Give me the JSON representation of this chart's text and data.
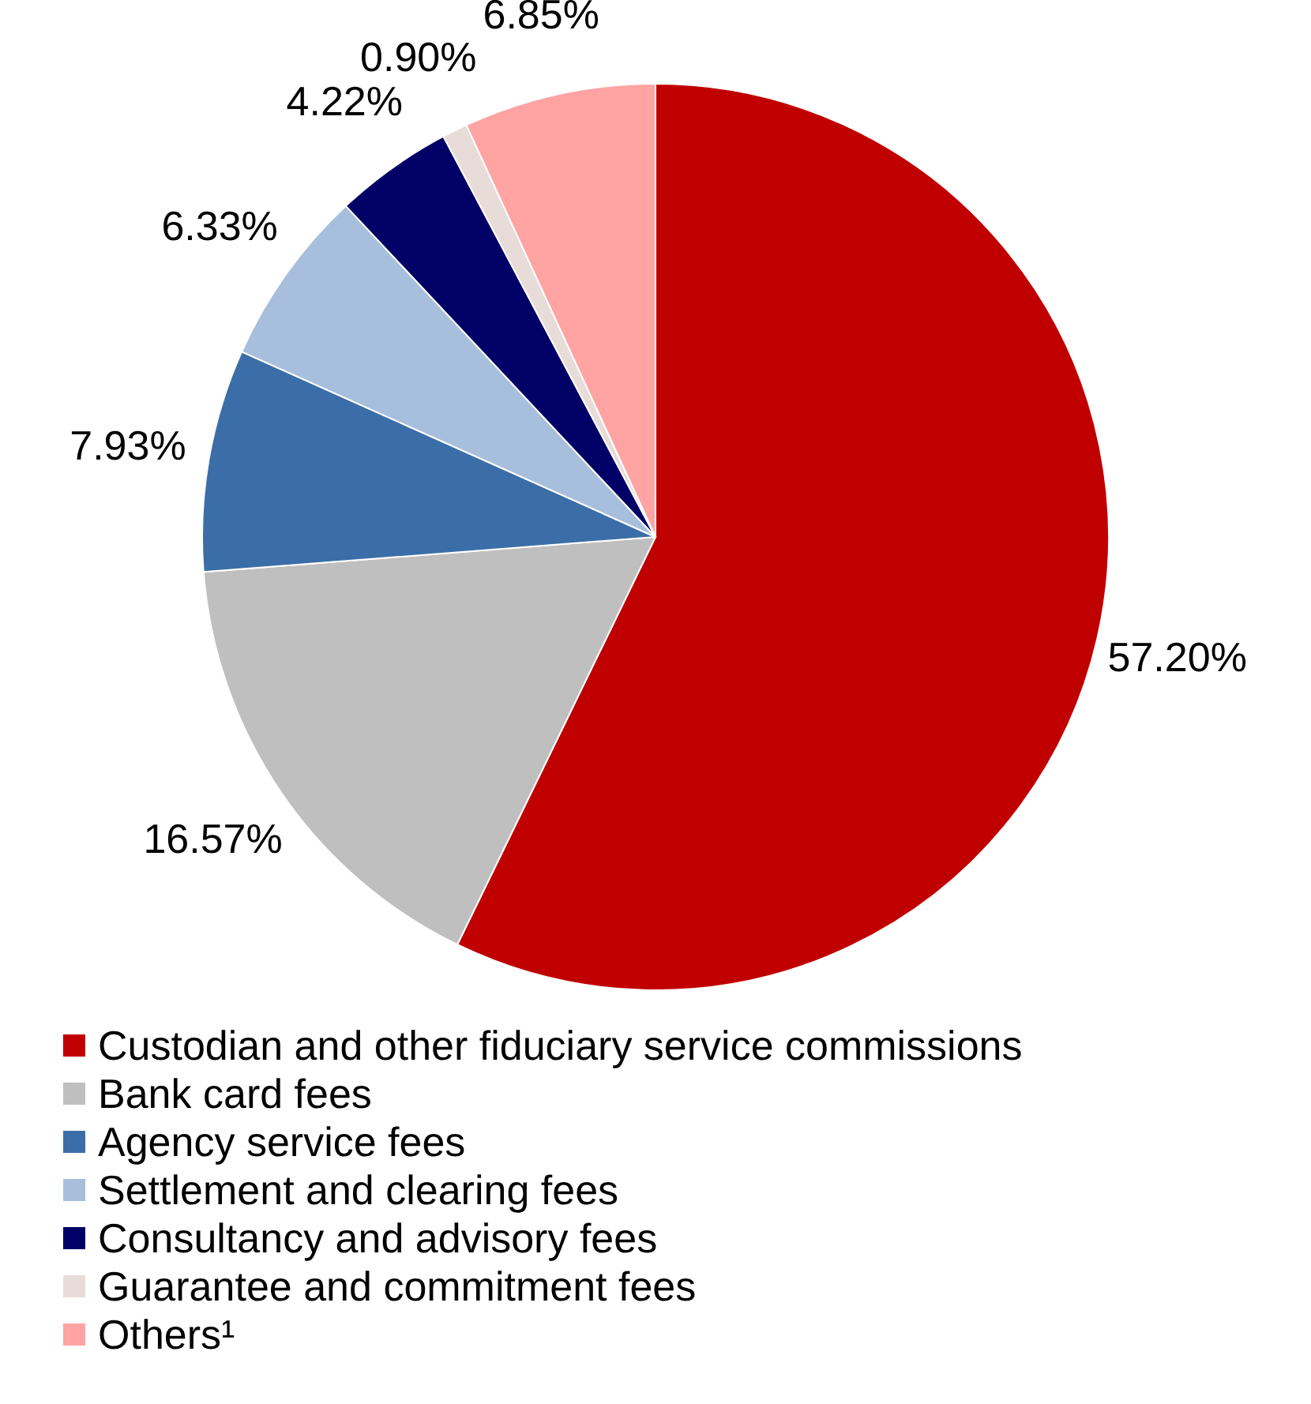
{
  "chart_data": {
    "type": "pie",
    "categories": [
      "Custodian and other fiduciary service commissions",
      "Bank card fees",
      "Agency service fees",
      "Settlement and clearing fees",
      "Consultancy and advisory fees",
      "Guarantee and commitment fees",
      "Others¹"
    ],
    "values": [
      57.2,
      16.57,
      7.93,
      6.33,
      4.22,
      0.9,
      6.85
    ],
    "colors": [
      "#c00000",
      "#bfbfbf",
      "#3b6ea8",
      "#a7bfdc",
      "#000066",
      "#e8dcd8",
      "#ffa3a3"
    ],
    "value_labels": [
      "57.20%",
      "16.57%",
      "7.93%",
      "6.33%",
      "4.22%",
      "0.90%",
      "6.85%"
    ],
    "legend": "bottom"
  }
}
